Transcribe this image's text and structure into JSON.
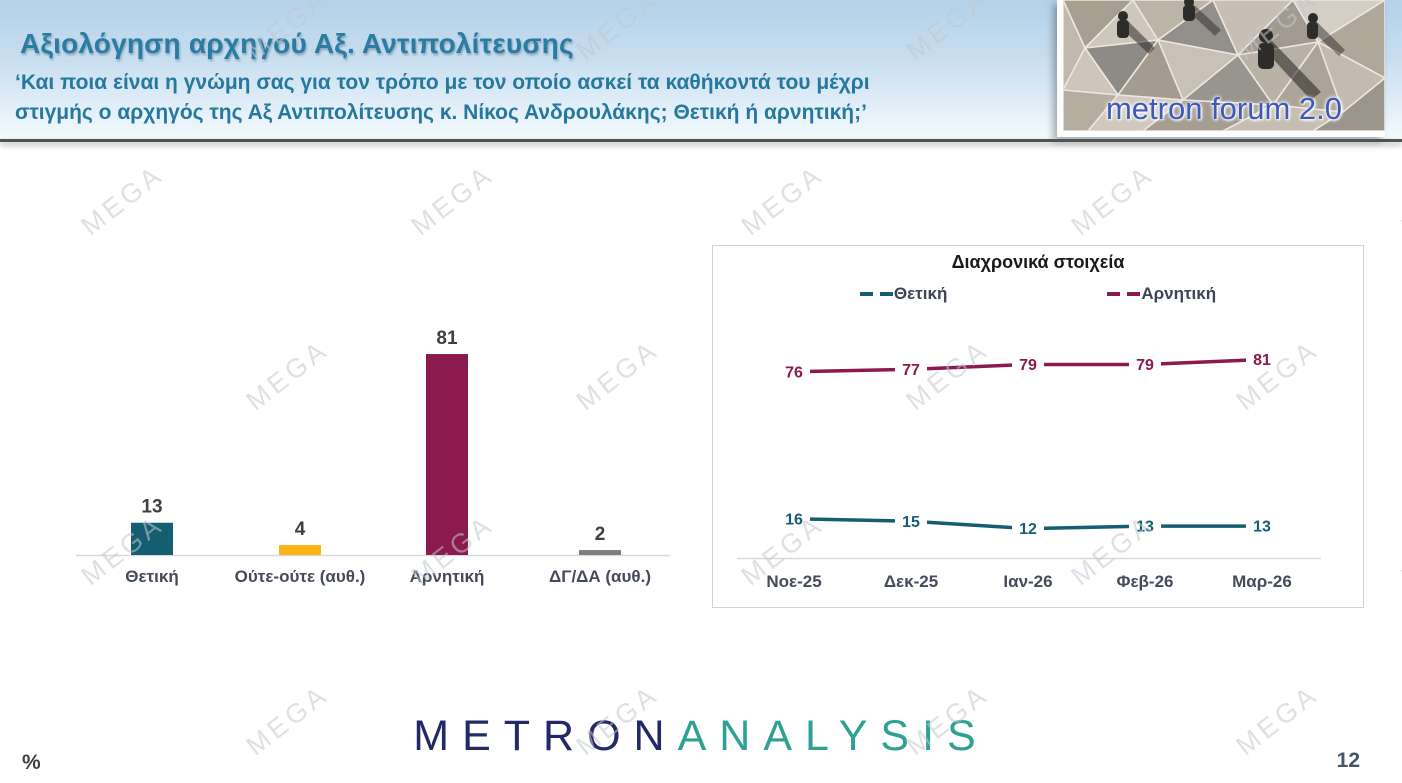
{
  "header": {
    "title": "Αξιολόγηση αρχηγού Αξ. Αντιπολίτευσης",
    "subtitle_line1": "‘Και ποια είναι η γνώμη σας για τον τρόπο με τον οποίο ασκεί τα καθήκοντά του μέχρι",
    "subtitle_line2": "στιγμής ο αρχηγός της Αξ Αντιπολίτευσης κ. Νίκος Ανδρουλάκης; Θετική ή αρνητική;’",
    "logo_text": "metron forum 2.0"
  },
  "watermark": {
    "text": "MEGA"
  },
  "footer": {
    "percent_label": "%",
    "page_number": "12",
    "brand_part1": "METRON",
    "brand_part2": "ANALYSIS"
  },
  "colors": {
    "teal": "#155E72",
    "yellow": "#FCB514",
    "maroon": "#8B1A4F",
    "gray": "#7F7F7F",
    "axis_line": "#d9d9d9",
    "value_label": "#3f3f3f",
    "category_label": "#454b5a"
  },
  "chart_data": [
    {
      "type": "bar",
      "title": "",
      "categories": [
        "Θετική",
        "Ούτε-ούτε (αυθ.)",
        "Αρνητική",
        "ΔΓ/ΔΑ (αυθ.)"
      ],
      "values": [
        13,
        4,
        81,
        2
      ],
      "colors": [
        "#155E72",
        "#FCB514",
        "#8B1A4F",
        "#7F7F7F"
      ],
      "xlabel": "",
      "ylabel": "%",
      "ylim": [
        0,
        95
      ],
      "grid": false,
      "data_labels": true
    },
    {
      "type": "line",
      "title": "Διαχρονικά στοιχεία",
      "categories": [
        "Νοε-25",
        "Δεκ-25",
        "Ιαν-26",
        "Φεβ-26",
        "Μαρ-26"
      ],
      "series": [
        {
          "name": "Θετική",
          "values": [
            16,
            15,
            12,
            13,
            13
          ],
          "color": "#155E72"
        },
        {
          "name": "Αρνητική",
          "values": [
            76,
            77,
            79,
            79,
            81
          ],
          "color": "#8B1A4F"
        }
      ],
      "legend_position": "top",
      "ylim": [
        0,
        127
      ],
      "grid": false,
      "data_labels": true
    }
  ]
}
